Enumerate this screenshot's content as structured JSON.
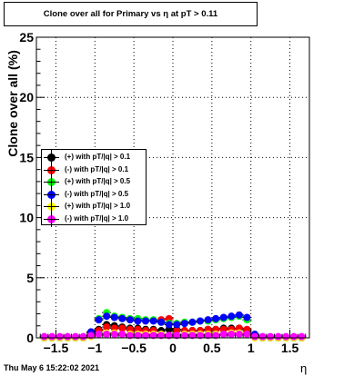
{
  "chart_data": {
    "type": "scatter",
    "title": "Clone  over all for Primary vs   η at pT > 0.11",
    "xlabel": "η",
    "ylabel": "Clone  over all (%)",
    "xlim": [
      -1.75,
      1.75
    ],
    "ylim": [
      0,
      25
    ],
    "x_ticks": [
      -1.5,
      -1,
      -0.5,
      0,
      0.5,
      1,
      1.5
    ],
    "x_tick_labels": [
      "−1.5",
      "−1",
      "−0.5",
      "0",
      "0.5",
      "1",
      "1.5"
    ],
    "y_ticks": [
      0,
      5,
      10,
      15,
      20,
      25
    ],
    "y_tick_labels": [
      "0",
      "5",
      "10",
      "15",
      "20",
      "25"
    ],
    "grid": true,
    "legend_position": "left-middle",
    "x": [
      -1.65,
      -1.55,
      -1.45,
      -1.35,
      -1.25,
      -1.15,
      -1.05,
      -0.95,
      -0.85,
      -0.75,
      -0.65,
      -0.55,
      -0.45,
      -0.35,
      -0.25,
      -0.15,
      -0.05,
      0.05,
      0.15,
      0.25,
      0.35,
      0.45,
      0.55,
      0.65,
      0.75,
      0.85,
      0.95,
      1.05,
      1.15,
      1.25,
      1.35,
      1.45,
      1.55,
      1.65
    ],
    "series": [
      {
        "name": "(+) with pT/|q| > 0.1",
        "color": "#000000",
        "values": [
          0,
          0,
          0,
          0,
          0,
          0,
          0.2,
          0.7,
          1.1,
          1.0,
          0.9,
          0.8,
          0.8,
          0.7,
          0.7,
          0.6,
          0.7,
          0.7,
          0.6,
          0.6,
          0.6,
          0.7,
          0.7,
          0.8,
          0.8,
          0.8,
          0.6,
          0.1,
          0,
          0,
          0,
          0,
          0,
          0
        ]
      },
      {
        "name": "(-) with pT/|q| > 0.1",
        "color": "#ff0000",
        "values": [
          0,
          0,
          0,
          0,
          0,
          0,
          0.2,
          0.6,
          0.9,
          0.8,
          0.8,
          0.7,
          0.7,
          0.6,
          0.6,
          1.5,
          1.6,
          0.6,
          0.6,
          0.6,
          0.6,
          0.7,
          0.7,
          0.7,
          0.7,
          0.8,
          0.7,
          0.1,
          0,
          0,
          0,
          0,
          0,
          0
        ]
      },
      {
        "name": "(+) with pT/|q| > 0.5",
        "color": "#00ff00",
        "values": [
          0,
          0,
          0,
          0,
          0,
          0,
          0.4,
          1.6,
          2.1,
          1.8,
          1.7,
          1.6,
          1.6,
          1.5,
          1.5,
          1.3,
          1.2,
          1.2,
          1.3,
          1.3,
          1.4,
          1.4,
          1.5,
          1.6,
          1.7,
          1.8,
          1.5,
          0.2,
          0,
          0,
          0,
          0,
          0,
          0
        ]
      },
      {
        "name": "(-) with pT/|q| > 0.5",
        "color": "#0000ff",
        "values": [
          0,
          0,
          0,
          0,
          0,
          0,
          0.5,
          1.5,
          1.8,
          1.7,
          1.6,
          1.5,
          1.4,
          1.4,
          1.4,
          1.3,
          1.1,
          1.1,
          1.2,
          1.3,
          1.4,
          1.5,
          1.6,
          1.7,
          1.8,
          1.9,
          1.7,
          0.3,
          0,
          0,
          0,
          0,
          0,
          0
        ]
      },
      {
        "name": "(+) with pT/|q| > 1.0",
        "color": "#ffff00",
        "values": [
          0,
          0,
          0,
          0,
          0,
          0,
          0.1,
          0.3,
          0.4,
          0.4,
          0.3,
          0.3,
          0.3,
          0.3,
          0.3,
          0.3,
          0.2,
          0.2,
          0.3,
          0.3,
          0.3,
          0.3,
          0.3,
          0.3,
          0.4,
          0.4,
          0.3,
          0,
          0,
          0,
          0,
          0,
          0,
          0
        ]
      },
      {
        "name": "(-) with pT/|q| > 1.0",
        "color": "#ff00ff",
        "values": [
          0.1,
          0.1,
          0.1,
          0.1,
          0.1,
          0.1,
          0.2,
          0.3,
          0.3,
          0.3,
          0.3,
          0.2,
          0.2,
          0.2,
          0.2,
          0.2,
          0.2,
          0.2,
          0.2,
          0.2,
          0.2,
          0.2,
          0.2,
          0.3,
          0.3,
          0.3,
          0.3,
          0.1,
          0.1,
          0.1,
          0.1,
          0.1,
          0.1,
          0.1
        ]
      }
    ]
  },
  "timestamp": "Thu May  6 15:22:02 2021"
}
